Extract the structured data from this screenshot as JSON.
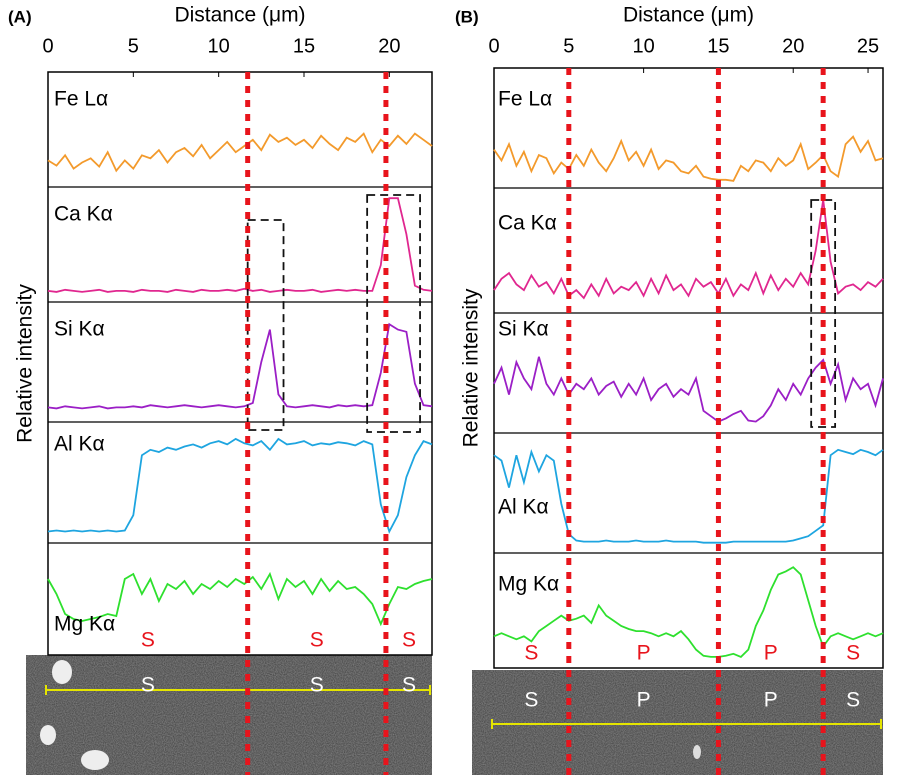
{
  "chart_data": [
    {
      "type": "line",
      "panel": "(A)",
      "x_label": "Distance (μm)",
      "y_label": "Relative intensity",
      "xlim": [
        0,
        22.5
      ],
      "xticks": [
        0,
        5,
        10,
        15,
        20
      ],
      "ylim": [
        0,
        100
      ],
      "x": [
        0,
        0.5,
        1,
        1.5,
        2,
        2.5,
        3,
        3.5,
        4,
        4.5,
        5,
        5.5,
        6,
        6.5,
        7,
        7.5,
        8,
        8.5,
        9,
        9.5,
        10,
        10.5,
        11,
        11.5,
        12,
        12.5,
        13,
        13.5,
        14,
        14.5,
        15,
        15.5,
        16,
        16.5,
        17,
        17.5,
        18,
        18.5,
        19,
        19.5,
        20,
        20.5,
        21,
        21.5,
        22,
        22.5
      ],
      "series": [
        {
          "name": "Fe Lα",
          "color": "#f39a2c",
          "values": [
            20,
            15,
            25,
            12,
            18,
            22,
            14,
            28,
            10,
            20,
            12,
            25,
            22,
            30,
            18,
            28,
            32,
            24,
            35,
            22,
            30,
            38,
            28,
            34,
            40,
            30,
            45,
            38,
            42,
            35,
            40,
            32,
            44,
            36,
            30,
            42,
            38,
            46,
            28,
            40,
            34,
            44,
            36,
            46,
            40,
            34
          ]
        },
        {
          "name": "Ca Kα",
          "color": "#e0278f",
          "values": [
            5,
            4,
            6,
            5,
            4,
            5,
            6,
            4,
            5,
            5,
            4,
            6,
            5,
            5,
            4,
            6,
            5,
            4,
            6,
            5,
            5,
            6,
            5,
            7,
            5,
            6,
            4,
            5,
            6,
            5,
            5,
            6,
            4,
            5,
            6,
            5,
            6,
            5,
            5,
            30,
            95,
            95,
            60,
            10,
            6,
            5
          ]
        },
        {
          "name": "Si Kα",
          "color": "#9b1fc6",
          "values": [
            8,
            7,
            9,
            8,
            7,
            8,
            9,
            7,
            8,
            8,
            9,
            8,
            10,
            9,
            8,
            9,
            10,
            9,
            8,
            9,
            10,
            9,
            8,
            9,
            12,
            50,
            80,
            20,
            9,
            8,
            9,
            10,
            9,
            8,
            10,
            9,
            10,
            9,
            10,
            40,
            85,
            80,
            78,
            30,
            10,
            9
          ]
        },
        {
          "name": "Al Kα",
          "color": "#1ea5e0",
          "values": [
            5,
            6,
            5,
            6,
            5,
            6,
            5,
            6,
            5,
            6,
            20,
            75,
            80,
            78,
            82,
            80,
            83,
            85,
            82,
            86,
            88,
            85,
            90,
            86,
            84,
            88,
            80,
            90,
            85,
            86,
            88,
            84,
            86,
            85,
            87,
            86,
            84,
            88,
            85,
            30,
            5,
            20,
            55,
            75,
            88,
            85
          ]
        },
        {
          "name": "Mg Kα",
          "color": "#2ee02e",
          "values": [
            70,
            55,
            35,
            30,
            28,
            30,
            32,
            35,
            33,
            70,
            75,
            55,
            70,
            48,
            65,
            60,
            68,
            55,
            65,
            60,
            68,
            62,
            70,
            65,
            72,
            60,
            75,
            50,
            70,
            62,
            68,
            55,
            70,
            58,
            68,
            60,
            62,
            55,
            45,
            25,
            45,
            62,
            60,
            65,
            68,
            70
          ]
        }
      ],
      "markers": [
        11.7,
        19.8
      ],
      "boxes": [
        [
          11.7,
          13.8
        ],
        [
          18.7,
          21.8
        ]
      ],
      "regions": [
        "S",
        "S",
        "S"
      ]
    },
    {
      "type": "line",
      "panel": "(B)",
      "x_label": "Distance (μm)",
      "y_label": "Relative intensity",
      "xlim": [
        0,
        26
      ],
      "xticks": [
        0,
        5,
        10,
        15,
        20,
        25
      ],
      "ylim": [
        0,
        100
      ],
      "x": [
        0,
        0.5,
        1,
        1.5,
        2,
        2.5,
        3,
        3.5,
        4,
        4.5,
        5,
        5.5,
        6,
        6.5,
        7,
        7.5,
        8,
        8.5,
        9,
        9.5,
        10,
        10.5,
        11,
        11.5,
        12,
        12.5,
        13,
        13.5,
        14,
        14.5,
        15,
        15.5,
        16,
        16.5,
        17,
        17.5,
        18,
        18.5,
        19,
        19.5,
        20,
        20.5,
        21,
        21.5,
        22,
        22.5,
        23,
        23.5,
        24,
        24.5,
        25,
        25.5,
        26
      ],
      "series": [
        {
          "name": "Fe Lα",
          "color": "#f39a2c",
          "values": [
            30,
            20,
            35,
            15,
            28,
            10,
            25,
            22,
            8,
            18,
            12,
            25,
            15,
            30,
            18,
            10,
            22,
            38,
            20,
            28,
            15,
            30,
            12,
            20,
            18,
            10,
            8,
            15,
            5,
            3,
            2,
            2,
            1,
            15,
            10,
            20,
            18,
            10,
            22,
            15,
            20,
            35,
            12,
            18,
            25,
            10,
            5,
            35,
            42,
            28,
            38,
            20,
            22
          ]
        },
        {
          "name": "Ca Kα",
          "color": "#e0278f",
          "values": [
            15,
            25,
            30,
            20,
            15,
            28,
            18,
            22,
            12,
            25,
            10,
            15,
            8,
            20,
            10,
            25,
            12,
            18,
            15,
            22,
            10,
            25,
            12,
            28,
            15,
            20,
            10,
            25,
            18,
            22,
            12,
            25,
            10,
            20,
            15,
            30,
            12,
            28,
            15,
            25,
            18,
            30,
            20,
            50,
            95,
            40,
            12,
            18,
            20,
            15,
            22,
            18,
            25
          ]
        },
        {
          "name": "Si Kα",
          "color": "#9b1fc6",
          "values": [
            40,
            55,
            30,
            60,
            45,
            35,
            65,
            40,
            30,
            45,
            30,
            40,
            35,
            45,
            30,
            38,
            42,
            28,
            40,
            30,
            45,
            25,
            35,
            40,
            28,
            35,
            30,
            45,
            15,
            10,
            5,
            8,
            12,
            15,
            6,
            5,
            10,
            20,
            35,
            25,
            40,
            30,
            45,
            55,
            62,
            40,
            58,
            25,
            45,
            35,
            40,
            20,
            45
          ]
        },
        {
          "name": "Al Kα",
          "color": "#1ea5e0",
          "values": [
            85,
            80,
            55,
            85,
            60,
            88,
            70,
            85,
            80,
            40,
            12,
            6,
            5,
            5,
            5,
            6,
            5,
            5,
            5,
            6,
            5,
            5,
            5,
            6,
            5,
            5,
            5,
            5,
            4,
            4,
            4,
            4,
            5,
            5,
            5,
            5,
            5,
            5,
            5,
            5,
            6,
            8,
            10,
            15,
            20,
            85,
            90,
            88,
            86,
            90,
            88,
            85,
            90
          ]
        },
        {
          "name": "Mg Kα",
          "color": "#2ee02e",
          "values": [
            25,
            28,
            25,
            22,
            25,
            20,
            30,
            35,
            40,
            45,
            40,
            42,
            45,
            38,
            55,
            45,
            40,
            35,
            32,
            30,
            30,
            28,
            25,
            28,
            25,
            30,
            22,
            12,
            6,
            5,
            5,
            6,
            8,
            5,
            12,
            35,
            50,
            70,
            85,
            88,
            92,
            85,
            60,
            35,
            15,
            25,
            28,
            25,
            22,
            25,
            28,
            25,
            28
          ]
        }
      ],
      "markers": [
        5,
        15,
        22
      ],
      "boxes": [
        [
          21.2,
          22.8
        ]
      ],
      "regions": [
        "S",
        "P",
        "P",
        "S"
      ]
    }
  ]
}
